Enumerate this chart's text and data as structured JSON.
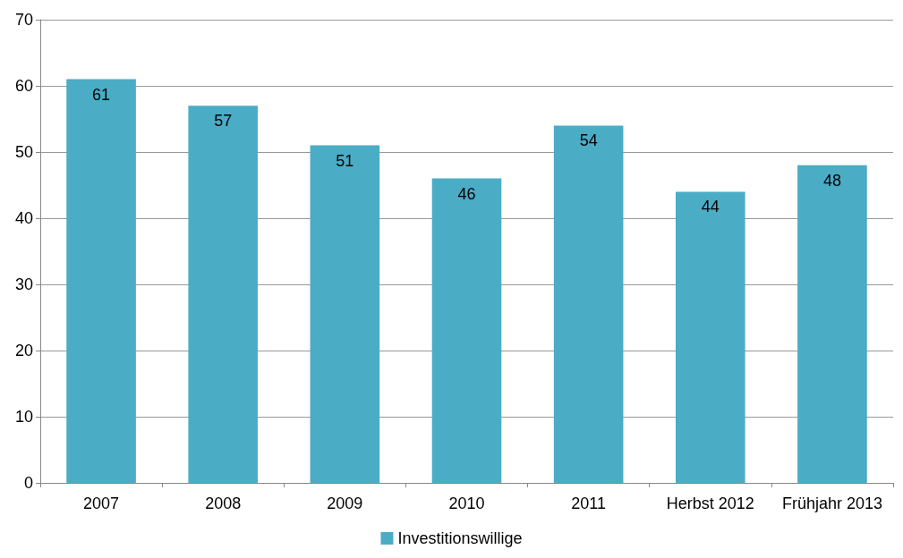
{
  "chart_data": {
    "type": "bar",
    "categories": [
      "2007",
      "2008",
      "2009",
      "2010",
      "2011",
      "Herbst 2012",
      "Frühjahr 2013"
    ],
    "series": [
      {
        "name": "Investitionswillige",
        "color": "#4bacc6",
        "values": [
          61,
          57,
          51,
          46,
          54,
          44,
          48
        ]
      }
    ],
    "ylim": [
      0,
      70
    ],
    "yticks": [
      0,
      10,
      20,
      30,
      40,
      50,
      60,
      70
    ],
    "grid": "y",
    "legend": "bottom",
    "data_labels": true
  }
}
